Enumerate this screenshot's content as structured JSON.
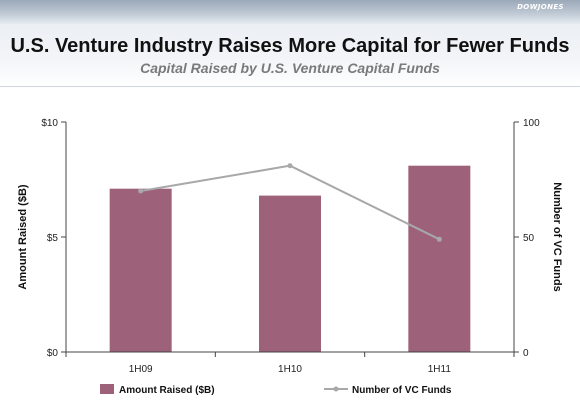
{
  "header": {
    "logo": "DOWJONES",
    "title": "U.S. Venture Industry Raises More Capital for Fewer Funds",
    "subtitle": "Capital Raised by U.S. Venture Capital Funds"
  },
  "colors": {
    "bar": "#9d6179",
    "line": "#a8a8a8",
    "axis": "#444444"
  },
  "chart_data": {
    "type": "bar",
    "categories": [
      "1H09",
      "1H10",
      "1H11"
    ],
    "series": [
      {
        "name": "Amount Raised ($B)",
        "type": "bar",
        "axis": "left",
        "values": [
          7.1,
          6.8,
          8.1
        ]
      },
      {
        "name": "Number of VC Funds",
        "type": "line",
        "axis": "right",
        "values": [
          70,
          81,
          49
        ]
      }
    ],
    "ylabel": "Amount Raised ($B)",
    "y2label": "Number of VC Funds",
    "ylim": [
      0,
      10
    ],
    "y2lim": [
      0,
      100
    ],
    "yticks": [
      "$0",
      "$5",
      "$10"
    ],
    "yticks_values": [
      0,
      5,
      10
    ],
    "y2ticks": [
      "0",
      "50",
      "100"
    ],
    "y2ticks_values": [
      0,
      50,
      100
    ],
    "grid": false,
    "legend_position": "bottom"
  }
}
